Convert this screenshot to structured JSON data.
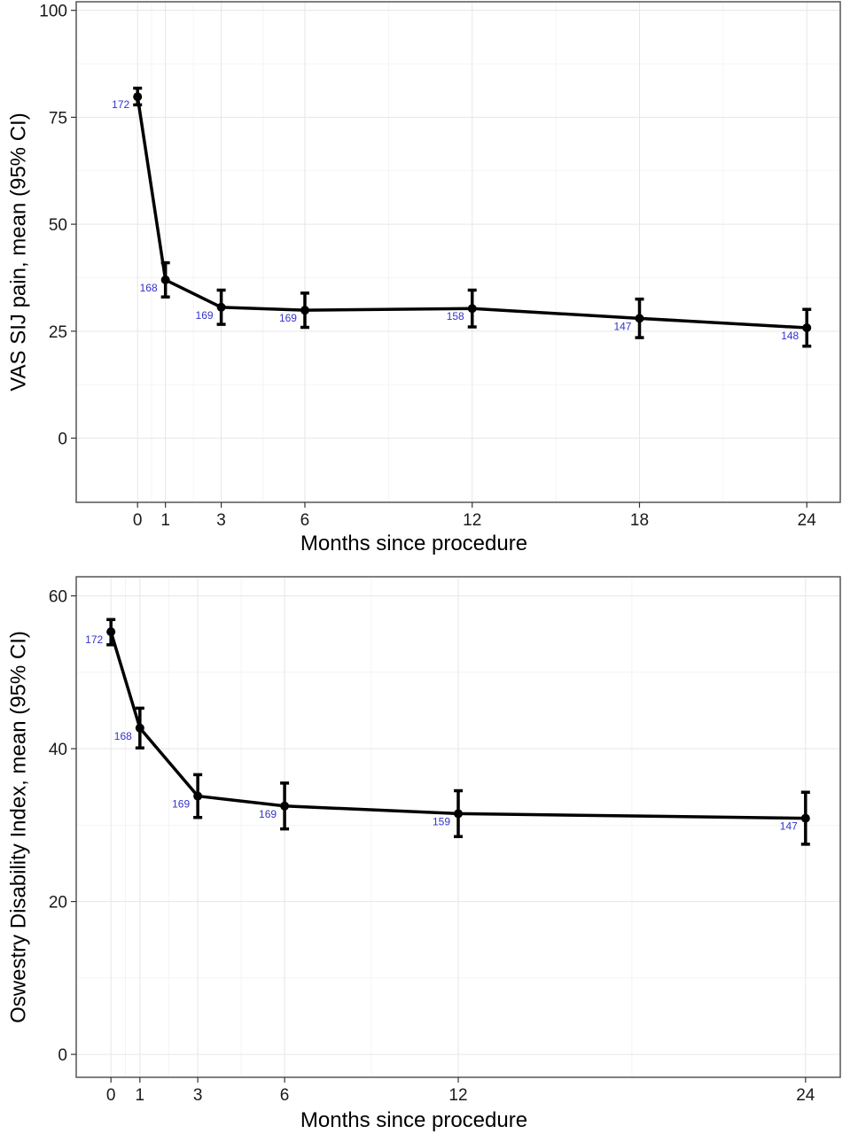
{
  "chart_data": [
    {
      "type": "line",
      "title": "",
      "xlabel": "Months since procedure",
      "ylabel": "VAS SIJ pain, mean (95% CI)",
      "xlim": [
        -2.2,
        25.2
      ],
      "ylim": [
        -15,
        102
      ],
      "xticks": [
        0,
        1,
        3,
        6,
        12,
        18,
        24
      ],
      "yticks": [
        0,
        25,
        50,
        75,
        100
      ],
      "grid": true,
      "legend": "none",
      "colors": {
        "line": "#000000",
        "n_label": "#3333cc"
      },
      "series": [
        {
          "x": [
            0,
            1,
            3,
            6,
            12,
            18,
            24
          ],
          "y": [
            79.8,
            37.0,
            30.6,
            29.9,
            30.3,
            28.0,
            25.8
          ],
          "ci_low": [
            77.9,
            33.0,
            26.6,
            25.9,
            26.0,
            23.5,
            21.5
          ],
          "ci_high": [
            81.8,
            41.0,
            34.6,
            33.9,
            34.6,
            32.5,
            30.1
          ],
          "n_labels": [
            "172",
            "168",
            "169",
            "169",
            "158",
            "147",
            "148"
          ]
        }
      ]
    },
    {
      "type": "line",
      "title": "",
      "xlabel": "Months since procedure",
      "ylabel": "Oswestry Disability Index, mean (95% CI)",
      "xlim": [
        -1.2,
        25.2
      ],
      "ylim": [
        -3,
        62.5
      ],
      "xticks": [
        0,
        1,
        3,
        6,
        12,
        24
      ],
      "yticks": [
        0,
        20,
        40,
        60
      ],
      "grid": true,
      "legend": "none",
      "colors": {
        "line": "#000000",
        "n_label": "#3333cc"
      },
      "series": [
        {
          "x": [
            0,
            1,
            3,
            6,
            12,
            24
          ],
          "y": [
            55.3,
            42.7,
            33.8,
            32.5,
            31.5,
            30.9
          ],
          "ci_low": [
            53.6,
            40.1,
            31.0,
            29.5,
            28.5,
            27.5
          ],
          "ci_high": [
            56.9,
            45.3,
            36.6,
            35.5,
            34.5,
            34.3
          ],
          "n_labels": [
            "172",
            "168",
            "169",
            "169",
            "159",
            "147"
          ]
        }
      ]
    }
  ]
}
